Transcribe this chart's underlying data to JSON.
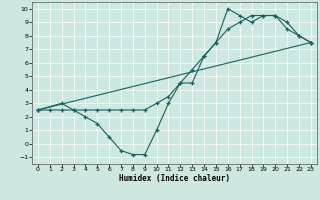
{
  "xlabel": "Humidex (Indice chaleur)",
  "xlim": [
    -0.5,
    23.5
  ],
  "ylim": [
    -1.5,
    10.5
  ],
  "xticks": [
    0,
    1,
    2,
    3,
    4,
    5,
    6,
    7,
    8,
    9,
    10,
    11,
    12,
    13,
    14,
    15,
    16,
    17,
    18,
    19,
    20,
    21,
    22,
    23
  ],
  "yticks": [
    -1,
    0,
    1,
    2,
    3,
    4,
    5,
    6,
    7,
    8,
    9,
    10
  ],
  "bg_color": "#cce8e0",
  "line_color": "#1a6060",
  "line1_x": [
    0,
    1,
    2,
    3,
    4,
    5,
    6,
    7,
    8,
    9,
    10,
    11,
    12,
    13,
    14,
    15,
    16,
    17,
    18,
    19,
    20,
    21,
    22,
    23
  ],
  "line1_y": [
    2.5,
    2.5,
    2.5,
    2.5,
    2.5,
    2.5,
    2.5,
    2.5,
    2.5,
    2.5,
    3.0,
    3.5,
    4.5,
    5.5,
    6.5,
    7.5,
    8.5,
    9.0,
    9.5,
    9.5,
    9.5,
    9.0,
    8.0,
    7.5
  ],
  "line2_x": [
    0,
    2,
    3,
    4,
    5,
    6,
    7,
    8,
    9,
    10,
    11,
    12,
    13,
    14,
    15,
    16,
    17,
    18,
    19,
    20,
    21,
    22,
    23
  ],
  "line2_y": [
    2.5,
    3.0,
    2.5,
    2.0,
    1.5,
    0.5,
    -0.5,
    -0.8,
    -0.8,
    1.0,
    3.0,
    4.5,
    4.5,
    6.5,
    7.5,
    10.0,
    9.5,
    9.0,
    9.5,
    9.5,
    8.5,
    8.0,
    7.5
  ],
  "line3_x": [
    0,
    23
  ],
  "line3_y": [
    2.5,
    7.5
  ]
}
